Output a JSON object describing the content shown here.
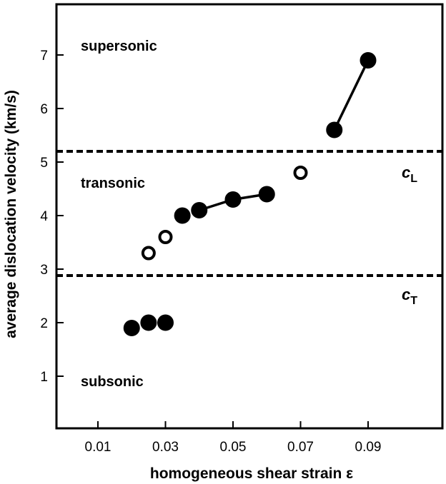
{
  "chart_data": {
    "type": "scatter",
    "title": "",
    "xlabel": "homogeneous shear strain ε",
    "ylabel": "average dislocation velocity (km/s)",
    "xlim": [
      0.0,
      0.1
    ],
    "ylim": [
      0,
      8
    ],
    "xticks": [
      "0.01",
      "0.03",
      "0.05",
      "0.07",
      "0.09"
    ],
    "yticks": [
      "1",
      "2",
      "3",
      "4",
      "5",
      "6",
      "7"
    ],
    "regions": [
      "supersonic",
      "transonic",
      "subsonic"
    ],
    "reference_lines": [
      {
        "name": "c",
        "subscript": "L",
        "value": 5.2,
        "style": "dashed"
      },
      {
        "name": "c",
        "subscript": "T",
        "value": 2.88,
        "style": "dashed"
      }
    ],
    "series": [
      {
        "marker": "filled-circle",
        "connected": false,
        "points": [
          [
            0.02,
            1.9
          ],
          [
            0.025,
            2.0
          ],
          [
            0.03,
            2.0
          ]
        ]
      },
      {
        "marker": "open-circle",
        "connected": false,
        "points": [
          [
            0.025,
            3.3
          ],
          [
            0.03,
            3.6
          ],
          [
            0.07,
            4.8
          ]
        ]
      },
      {
        "marker": "filled-circle",
        "connected": false,
        "points": [
          [
            0.035,
            4.0
          ]
        ]
      },
      {
        "marker": "filled-circle",
        "connected": true,
        "points": [
          [
            0.04,
            4.1
          ],
          [
            0.05,
            4.3
          ],
          [
            0.06,
            4.4
          ]
        ]
      },
      {
        "marker": "filled-circle",
        "connected": true,
        "points": [
          [
            0.08,
            5.6
          ],
          [
            0.09,
            6.9
          ]
        ]
      }
    ],
    "colors": {
      "ink": "#000000",
      "background": "#ffffff"
    }
  }
}
